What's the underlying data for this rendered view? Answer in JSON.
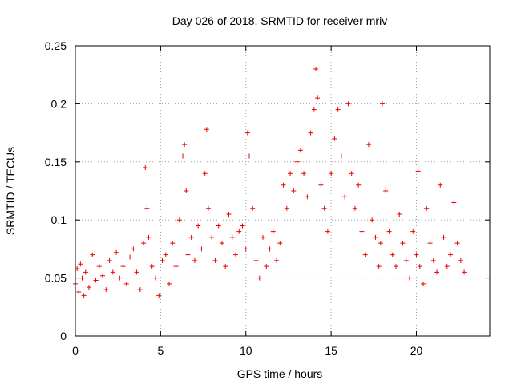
{
  "chart_data": {
    "type": "scatter",
    "title": "Day 026 of 2018, SRMTID for receiver mriv",
    "xlabel": "GPS time / hours",
    "ylabel": "SRMTID / TECUs",
    "xlim": [
      0,
      24.3
    ],
    "ylim": [
      0,
      0.25
    ],
    "grid": true,
    "marker": "plus",
    "color": "#ee0000",
    "x_ticks": [
      {
        "value": 0,
        "label": "0"
      },
      {
        "value": 5,
        "label": "5"
      },
      {
        "value": 10,
        "label": "10"
      },
      {
        "value": 15,
        "label": "15"
      },
      {
        "value": 20,
        "label": "20"
      }
    ],
    "y_ticks": [
      {
        "value": 0,
        "label": "0"
      },
      {
        "value": 0.05,
        "label": "0.05"
      },
      {
        "value": 0.1,
        "label": "0.1"
      },
      {
        "value": 0.15,
        "label": "0.15"
      },
      {
        "value": 0.2,
        "label": "0.2"
      },
      {
        "value": 0.25,
        "label": "0.25"
      }
    ],
    "series": [
      {
        "name": "SRMTID",
        "x": [
          0.0,
          0.1,
          0.2,
          0.3,
          0.4,
          0.5,
          0.6,
          0.8,
          1.0,
          1.2,
          1.4,
          1.6,
          1.8,
          2.0,
          2.2,
          2.4,
          2.6,
          2.8,
          3.0,
          3.2,
          3.4,
          3.6,
          3.8,
          4.0,
          4.1,
          4.2,
          4.3,
          4.5,
          4.7,
          4.9,
          5.1,
          5.3,
          5.5,
          5.7,
          5.9,
          6.1,
          6.3,
          6.4,
          6.5,
          6.6,
          6.8,
          7.0,
          7.2,
          7.4,
          7.6,
          7.7,
          7.8,
          8.0,
          8.2,
          8.4,
          8.6,
          8.8,
          9.0,
          9.2,
          9.4,
          9.6,
          9.8,
          10.0,
          10.1,
          10.2,
          10.4,
          10.6,
          10.8,
          11.0,
          11.2,
          11.4,
          11.6,
          11.8,
          12.0,
          12.2,
          12.4,
          12.6,
          12.8,
          13.0,
          13.2,
          13.4,
          13.6,
          13.8,
          14.0,
          14.1,
          14.2,
          14.4,
          14.6,
          14.8,
          15.0,
          15.2,
          15.4,
          15.6,
          15.8,
          16.0,
          16.2,
          16.4,
          16.6,
          16.8,
          17.0,
          17.2,
          17.4,
          17.6,
          17.8,
          17.9,
          18.0,
          18.2,
          18.4,
          18.6,
          18.8,
          19.0,
          19.2,
          19.4,
          19.6,
          19.8,
          20.0,
          20.1,
          20.2,
          20.4,
          20.6,
          20.8,
          21.0,
          21.2,
          21.4,
          21.6,
          21.8,
          22.0,
          22.2,
          22.4,
          22.6,
          22.8
        ],
        "y": [
          0.045,
          0.058,
          0.038,
          0.062,
          0.05,
          0.035,
          0.055,
          0.042,
          0.07,
          0.048,
          0.06,
          0.052,
          0.04,
          0.065,
          0.055,
          0.072,
          0.05,
          0.06,
          0.045,
          0.068,
          0.075,
          0.055,
          0.04,
          0.08,
          0.145,
          0.11,
          0.085,
          0.06,
          0.05,
          0.035,
          0.065,
          0.07,
          0.045,
          0.08,
          0.06,
          0.1,
          0.155,
          0.165,
          0.125,
          0.07,
          0.085,
          0.065,
          0.095,
          0.075,
          0.14,
          0.178,
          0.11,
          0.085,
          0.065,
          0.095,
          0.08,
          0.06,
          0.105,
          0.085,
          0.07,
          0.09,
          0.095,
          0.075,
          0.175,
          0.155,
          0.11,
          0.065,
          0.05,
          0.085,
          0.06,
          0.075,
          0.09,
          0.065,
          0.08,
          0.13,
          0.11,
          0.14,
          0.125,
          0.15,
          0.16,
          0.14,
          0.12,
          0.175,
          0.195,
          0.23,
          0.205,
          0.13,
          0.11,
          0.09,
          0.14,
          0.17,
          0.195,
          0.155,
          0.12,
          0.2,
          0.14,
          0.11,
          0.13,
          0.09,
          0.07,
          0.165,
          0.1,
          0.085,
          0.06,
          0.08,
          0.2,
          0.125,
          0.09,
          0.07,
          0.06,
          0.105,
          0.08,
          0.065,
          0.05,
          0.09,
          0.07,
          0.142,
          0.06,
          0.045,
          0.11,
          0.08,
          0.065,
          0.055,
          0.13,
          0.085,
          0.06,
          0.07,
          0.115,
          0.08,
          0.065,
          0.055
        ]
      }
    ]
  }
}
